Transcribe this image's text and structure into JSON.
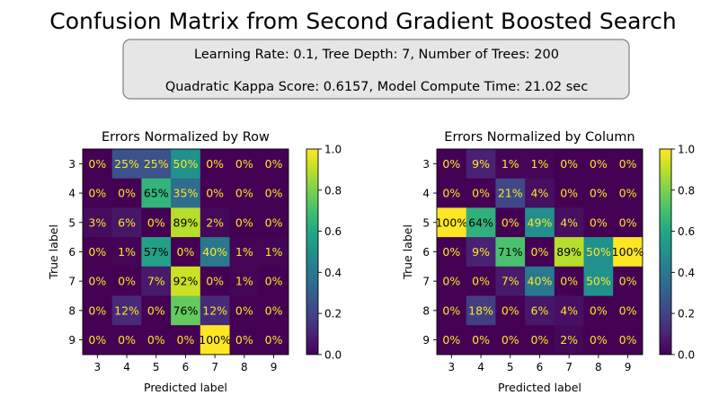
{
  "figure": {
    "title": "Confusion Matrix from Second Gradient Boosted Search",
    "info_line1": "Learning Rate: 0.1, Tree Depth: 7, Number of Trees: 200",
    "info_line2": "Quadratic Kappa Score: 0.6157,  Model Compute Time: 21.02 sec"
  },
  "chart_data": [
    {
      "type": "heatmap",
      "title": "Errors Normalized by Row",
      "xlabel": "Predicted label",
      "ylabel": "True label",
      "x_categories": [
        "3",
        "4",
        "5",
        "6",
        "7",
        "8",
        "9"
      ],
      "y_categories": [
        "3",
        "4",
        "5",
        "6",
        "7",
        "8",
        "9"
      ],
      "values": [
        [
          0.0,
          0.25,
          0.25,
          0.5,
          0.0,
          0.0,
          0.0
        ],
        [
          0.0,
          0.0,
          0.65,
          0.35,
          0.0,
          0.0,
          0.0
        ],
        [
          0.03,
          0.06,
          0.0,
          0.89,
          0.02,
          0.0,
          0.0
        ],
        [
          0.0,
          0.01,
          0.57,
          0.0,
          0.4,
          0.01,
          0.01
        ],
        [
          0.0,
          0.0,
          0.07,
          0.92,
          0.0,
          0.01,
          0.0
        ],
        [
          0.0,
          0.12,
          0.0,
          0.76,
          0.12,
          0.0,
          0.0
        ],
        [
          0.0,
          0.0,
          0.0,
          0.0,
          1.0,
          0.0,
          0.0
        ]
      ],
      "labels": [
        [
          "0%",
          "25%",
          "25%",
          "50%",
          "0%",
          "0%",
          "0%"
        ],
        [
          "0%",
          "0%",
          "65%",
          "35%",
          "0%",
          "0%",
          "0%"
        ],
        [
          "3%",
          "6%",
          "0%",
          "89%",
          "2%",
          "0%",
          "0%"
        ],
        [
          "0%",
          "1%",
          "57%",
          "0%",
          "40%",
          "1%",
          "1%"
        ],
        [
          "0%",
          "0%",
          "7%",
          "92%",
          "0%",
          "1%",
          "0%"
        ],
        [
          "0%",
          "12%",
          "0%",
          "76%",
          "12%",
          "0%",
          "0%"
        ],
        [
          "0%",
          "0%",
          "0%",
          "0%",
          "100%",
          "0%",
          "0%"
        ]
      ],
      "colorbar_ticks": [
        "0.0",
        "0.2",
        "0.4",
        "0.6",
        "0.8",
        "1.0"
      ],
      "colorbar_range": [
        0,
        1
      ],
      "colormap": "viridis"
    },
    {
      "type": "heatmap",
      "title": "Errors Normalized by Column",
      "xlabel": "Predicted label",
      "ylabel": "True label",
      "x_categories": [
        "3",
        "4",
        "5",
        "6",
        "7",
        "8",
        "9"
      ],
      "y_categories": [
        "3",
        "4",
        "5",
        "6",
        "7",
        "8",
        "9"
      ],
      "values": [
        [
          0.0,
          0.09,
          0.01,
          0.01,
          0.0,
          0.0,
          0.0
        ],
        [
          0.0,
          0.0,
          0.21,
          0.04,
          0.0,
          0.0,
          0.0
        ],
        [
          1.0,
          0.64,
          0.0,
          0.49,
          0.04,
          0.0,
          0.0
        ],
        [
          0.0,
          0.09,
          0.71,
          0.0,
          0.89,
          0.5,
          1.0
        ],
        [
          0.0,
          0.0,
          0.07,
          0.4,
          0.0,
          0.5,
          0.0
        ],
        [
          0.0,
          0.18,
          0.0,
          0.06,
          0.04,
          0.0,
          0.0
        ],
        [
          0.0,
          0.0,
          0.0,
          0.0,
          0.02,
          0.0,
          0.0
        ]
      ],
      "labels": [
        [
          "0%",
          "9%",
          "1%",
          "1%",
          "0%",
          "0%",
          "0%"
        ],
        [
          "0%",
          "0%",
          "21%",
          "4%",
          "0%",
          "0%",
          "0%"
        ],
        [
          "100%",
          "64%",
          "0%",
          "49%",
          "4%",
          "0%",
          "0%"
        ],
        [
          "0%",
          "9%",
          "71%",
          "0%",
          "89%",
          "50%",
          "100%"
        ],
        [
          "0%",
          "0%",
          "7%",
          "40%",
          "0%",
          "50%",
          "0%"
        ],
        [
          "0%",
          "18%",
          "0%",
          "6%",
          "4%",
          "0%",
          "0%"
        ],
        [
          "0%",
          "0%",
          "0%",
          "0%",
          "2%",
          "0%",
          "0%"
        ]
      ],
      "colorbar_ticks": [
        "0.0",
        "0.2",
        "0.4",
        "0.6",
        "0.8",
        "1.0"
      ],
      "colorbar_range": [
        0,
        1
      ],
      "colormap": "viridis"
    }
  ]
}
